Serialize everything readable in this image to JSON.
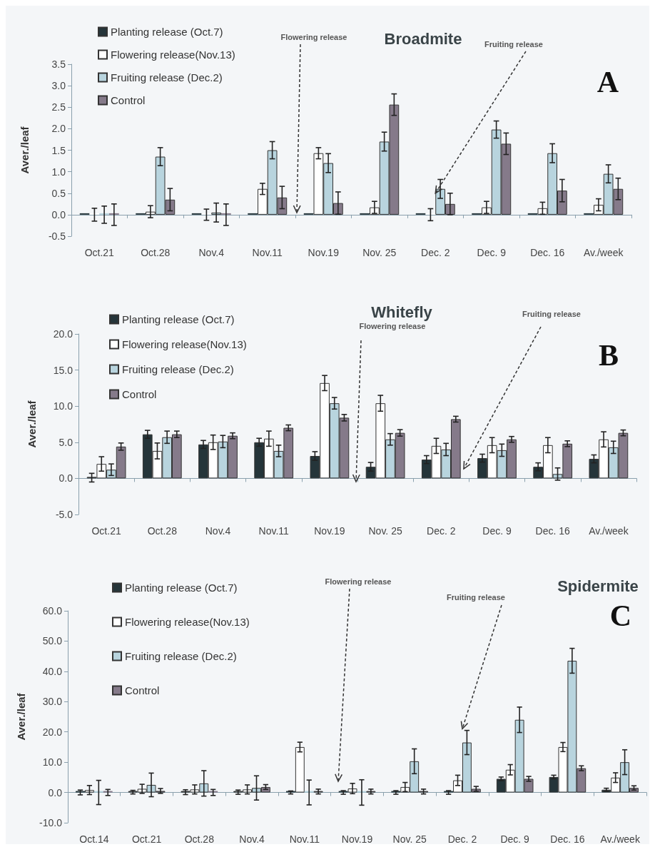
{
  "chart_data": [
    {
      "type": "bar",
      "title": "Broadmite",
      "ylabel": "Aver./leaf",
      "legend": "top left",
      "categories": [
        "Oct.21",
        "Oct.28",
        "Nov.4",
        "Nov.11",
        "Nov.19",
        "Nov. 25",
        "Dec. 2",
        "Dec. 9",
        "Dec. 16",
        "Av./week"
      ],
      "series": [
        {
          "name": "Planting release (Oct.7)",
          "color": "#25353a",
          "values": [
            0,
            0,
            0,
            0,
            0,
            0,
            0,
            0,
            0,
            0
          ]
        },
        {
          "name": "Flowering release(Nov.13)",
          "color": "#ffffff",
          "values": [
            0,
            0.07,
            0,
            0.6,
            1.43,
            0.17,
            0,
            0.17,
            0.15,
            0.23
          ],
          "errors": [
            0.15,
            0.14,
            0.13,
            0.13,
            0.13,
            0.14,
            0.14,
            0.14,
            0.14,
            0.14
          ]
        },
        {
          "name": "Fruiting release (Dec.2)",
          "color": "#b8d4de",
          "values": [
            0,
            1.35,
            0.05,
            1.5,
            1.2,
            1.7,
            0.6,
            1.98,
            1.43,
            0.95
          ],
          "errors": [
            0.2,
            0.21,
            0.22,
            0.2,
            0.22,
            0.22,
            0.22,
            0.2,
            0.22,
            0.21
          ]
        },
        {
          "name": "Control",
          "color": "#857a8a",
          "values": [
            0,
            0.35,
            0,
            0.4,
            0.27,
            2.56,
            0.25,
            1.65,
            0.56,
            0.6
          ],
          "errors": [
            0.25,
            0.26,
            0.25,
            0.26,
            0.26,
            0.25,
            0.25,
            0.25,
            0.26,
            0.25
          ]
        }
      ],
      "ylim": [
        -0.5,
        3.5
      ],
      "yticks": [
        -0.5,
        {
          "value": 0,
          "label": "0.0"
        },
        0.5,
        {
          "value": 1,
          "label": "1.0"
        },
        1.5,
        {
          "value": 2,
          "label": "2.0"
        },
        2.5,
        {
          "value": 3,
          "label": "3.0"
        },
        3.5
      ],
      "annotations": [
        "Flowering release",
        {
          "text": "Fruiting release",
          "x": "Dec. 2",
          "y": 0.5
        },
        "A"
      ]
    },
    {
      "type": "bar",
      "title": "Whitefly",
      "ylabel": "Aver./leaf",
      "legend": "top left",
      "categories": [
        "Oct.21",
        "Oct.28",
        "Nov.4",
        "Nov.11",
        "Nov.19",
        "Nov. 25",
        "Dec. 2",
        "Dec. 9",
        "Dec. 16",
        "Av./week"
      ],
      "series": [
        {
          "name": "Planting release (Oct.7)",
          "color": "#25353a",
          "values": [
            0.1,
            6.1,
            4.7,
            5.0,
            3.1,
            1.6,
            2.6,
            2.8,
            1.6,
            2.7
          ],
          "errors": [
            0.6,
            0.55,
            0.55,
            0.55,
            0.6,
            0.6,
            0.55,
            0.55,
            0.55,
            0.55
          ]
        },
        {
          "name": "Flowering release(Nov.13)",
          "color": "#ffffff",
          "values": [
            2.0,
            3.8,
            5.0,
            5.5,
            13.2,
            10.4,
            4.5,
            4.6,
            4.6,
            5.4
          ],
          "errors": [
            1.0,
            1.1,
            1.0,
            1.05,
            1.05,
            1.1,
            1.05,
            1.05,
            1.05,
            1.05
          ]
        },
        {
          "name": "Fruiting release (Dec.2)",
          "color": "#b8d4de",
          "values": [
            1.2,
            5.7,
            5.1,
            3.8,
            10.4,
            5.4,
            4.0,
            3.9,
            0.6,
            4.3
          ],
          "errors": [
            0.8,
            0.85,
            0.85,
            0.8,
            0.8,
            0.8,
            0.85,
            0.85,
            0.85,
            0.85
          ]
        },
        {
          "name": "Control",
          "color": "#857a8a",
          "values": [
            4.4,
            6.1,
            5.9,
            7.0,
            8.4,
            6.3,
            8.2,
            5.4,
            4.8,
            6.3
          ],
          "errors": [
            0.5,
            0.45,
            0.4,
            0.4,
            0.45,
            0.45,
            0.4,
            0.4,
            0.4,
            0.4
          ]
        }
      ],
      "ylim": [
        -5,
        20
      ],
      "yticks": [
        {
          "value": -5,
          "label": "-5.0"
        },
        {
          "value": 0,
          "label": "0.0"
        },
        {
          "value": 5,
          "label": "5.0"
        },
        {
          "value": 10,
          "label": "10.0"
        },
        {
          "value": 15,
          "label": "15.0"
        },
        {
          "value": 20,
          "label": "20.0"
        }
      ],
      "annotations": [
        "Flowering release",
        "Fruiting release",
        "B"
      ]
    },
    {
      "type": "bar",
      "title": "Spidermite",
      "ylabel": "Aver./leaf",
      "legend": "top left",
      "categories": [
        "Oct.14",
        "Oct.21",
        "Oct.28",
        "Nov.4",
        "Nov.11",
        "Nov.19",
        "Nov. 25",
        "Dec. 2",
        "Dec. 9",
        "Dec. 16",
        "Av./week"
      ],
      "series": [
        {
          "name": "Planting release (Oct.7)",
          "color": "#25353a",
          "values": [
            0,
            0.1,
            0.1,
            0.1,
            0,
            0,
            0,
            0,
            4.5,
            5.1,
            0.9
          ],
          "errors": [
            0.8,
            0.6,
            0.8,
            0.7,
            0.5,
            0.6,
            0.6,
            0.6,
            0.6,
            0.6,
            0.5
          ]
        },
        {
          "name": "Flowering release(Nov.13)",
          "color": "#ffffff",
          "values": [
            0.8,
            1.2,
            1.0,
            1.0,
            15.0,
            1.3,
            1.8,
            4.0,
            7.5,
            15.0,
            4.9
          ],
          "errors": [
            1.5,
            1.5,
            1.5,
            1.5,
            1.6,
            1.7,
            1.5,
            1.7,
            1.7,
            1.5,
            1.6
          ]
        },
        {
          "name": "Fruiting release (Dec.2)",
          "color": "#b8d4de",
          "values": [
            0,
            2.5,
            3.0,
            1.5,
            0,
            0,
            10.3,
            16.5,
            24.0,
            43.5,
            10.0
          ],
          "errors": [
            4.0,
            3.9,
            4.2,
            4.0,
            4.1,
            4.2,
            4.1,
            4.0,
            4.2,
            4.1,
            4.1
          ]
        },
        {
          "name": "Control",
          "color": "#857a8a",
          "values": [
            0,
            0.5,
            0,
            1.8,
            0.3,
            0.3,
            0.3,
            1.2,
            4.5,
            8.0,
            1.5
          ],
          "errors": [
            1.0,
            0.8,
            1.0,
            0.8,
            0.8,
            0.8,
            0.8,
            0.8,
            0.8,
            0.8,
            0.7
          ]
        }
      ],
      "ylim": [
        -10,
        60
      ],
      "yticks": [
        {
          "value": -10,
          "label": "-10.0"
        },
        {
          "value": 0,
          "label": "0.0"
        },
        {
          "value": 10,
          "label": "10.0"
        },
        {
          "value": 20,
          "label": "20.0"
        },
        {
          "value": 30,
          "label": "30.0"
        },
        {
          "value": 40,
          "label": "40.0"
        },
        {
          "value": 50,
          "label": "50.0"
        },
        {
          "value": 60,
          "label": "60.0"
        }
      ],
      "annotations": [
        "Flowering release",
        {
          "text": "Fruiting release",
          "x": "Dec. 2",
          "y": 21
        },
        "C"
      ]
    }
  ]
}
